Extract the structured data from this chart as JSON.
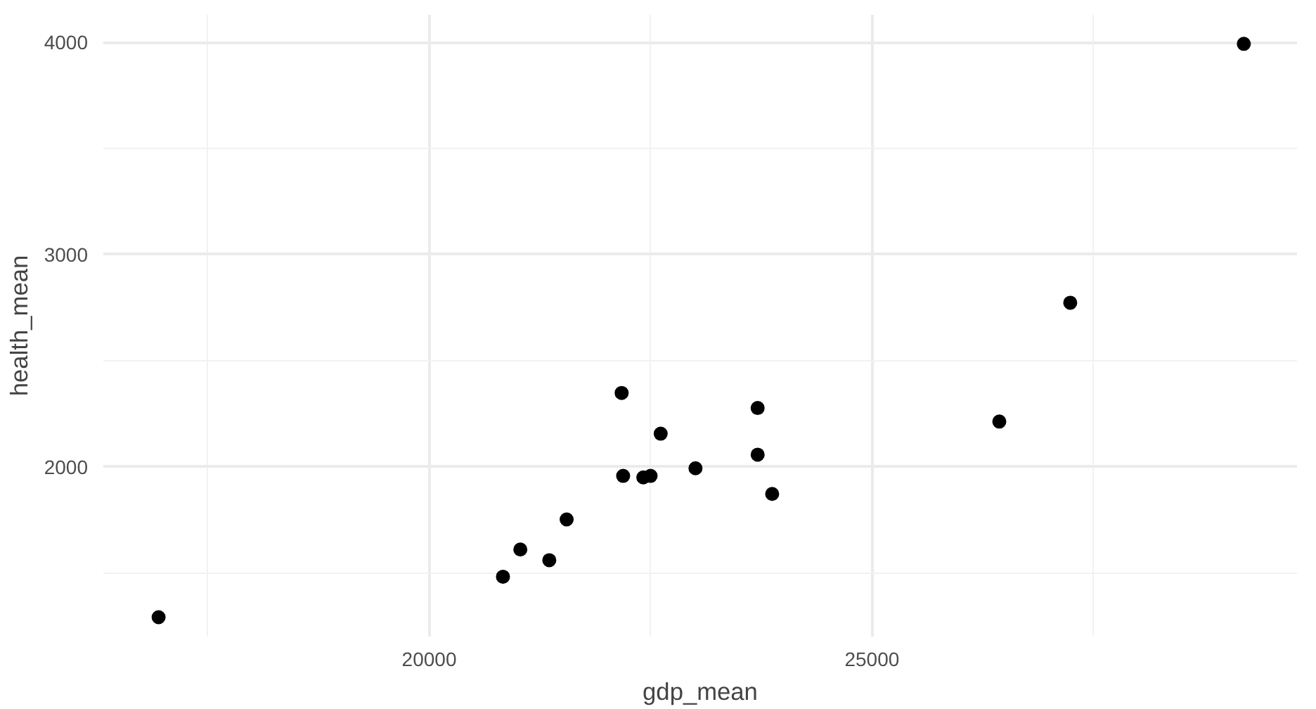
{
  "chart_data": {
    "type": "scatter",
    "xlabel": "gdp_mean",
    "ylabel": "health_mean",
    "marker": "circle",
    "grid": true,
    "x": [
      16944,
      20833,
      21029,
      21356,
      21552,
      22173,
      22190,
      22418,
      22500,
      22614,
      23007,
      23709,
      23709,
      23873,
      26438,
      27239,
      29199
    ],
    "series": [
      {
        "color": "#000000",
        "values": [
          1291,
          1482,
          1610,
          1560,
          1752,
          2348,
          1957,
          1950,
          1957,
          2156,
          1993,
          2277,
          2057,
          1872,
          2213,
          2773,
          3993
        ]
      }
    ],
    "xlim": [
      16320,
      29800
    ],
    "ylim": [
      1200,
      4130
    ],
    "xticks": [
      {
        "value": 17500,
        "label": null
      },
      20000,
      {
        "value": 22500,
        "label": null
      },
      25000,
      {
        "value": 27500,
        "label": null
      }
    ],
    "yticks": [
      {
        "value": 1500,
        "label": null
      },
      2000,
      {
        "value": 2500,
        "label": null
      },
      3000,
      {
        "value": 3500,
        "label": null
      },
      4000
    ]
  }
}
